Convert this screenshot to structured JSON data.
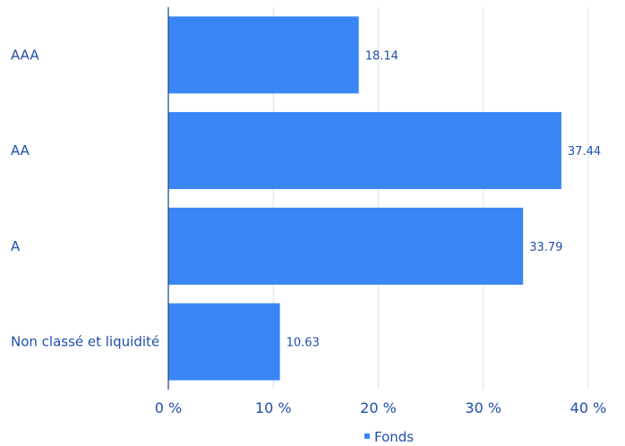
{
  "colors": {
    "bar": "#3b86f7",
    "text": "#1f4fa8",
    "grid": "#d5e6f7",
    "axis": "#1f3f7a"
  },
  "chart_data": {
    "type": "bar",
    "orientation": "horizontal",
    "categories": [
      "AAA",
      "AA",
      "A",
      "Non classé et liquidité"
    ],
    "series": [
      {
        "name": "Fonds",
        "values": [
          18.14,
          37.44,
          33.79,
          10.63
        ]
      }
    ],
    "data_labels": [
      "18.14",
      "37.44",
      "33.79",
      "10.63"
    ],
    "xlim": [
      0,
      40
    ],
    "xticks": [
      0,
      10,
      20,
      30,
      40
    ],
    "xtick_labels": [
      "0 %",
      "10 %",
      "20 %",
      "30 %",
      "40 %"
    ],
    "grid": "vertical",
    "legend": {
      "position": "bottom-center",
      "label": "Fonds"
    }
  }
}
